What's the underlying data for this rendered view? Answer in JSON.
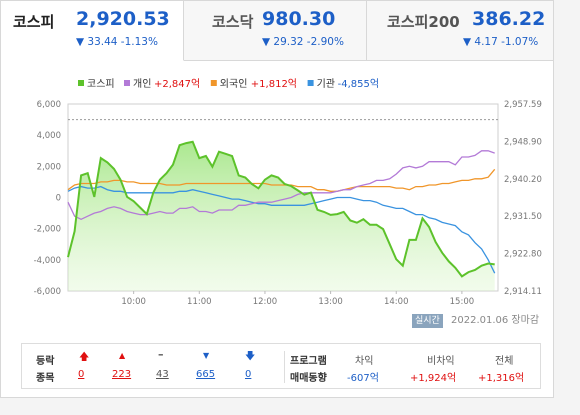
{
  "tabs": [
    {
      "name": "코스피",
      "price": "2,920.53",
      "change": "▼ 33.44  -1.13%",
      "active": true
    },
    {
      "name": "코스닥",
      "price": "980.30",
      "change": "▼ 29.32  -2.90%",
      "active": false
    },
    {
      "name": "코스피200",
      "price": "386.22",
      "change": "▼ 4.17  -1.07%",
      "active": false
    }
  ],
  "chart_data": {
    "type": "line",
    "legend": [
      {
        "name": "코스피",
        "color": "#5dc22b"
      },
      {
        "name": "개인",
        "value": "+2,847억",
        "color": "#b37ad7"
      },
      {
        "name": "외국인",
        "value": "+1,812억",
        "color": "#f0962a"
      },
      {
        "name": "기관",
        "value": "-4,855억",
        "color": "#3a93e0"
      }
    ],
    "left_axis": {
      "ticks": [
        "6,000",
        "4,000",
        "2,000",
        "0",
        "-2,000",
        "-4,000",
        "-6,000"
      ],
      "ylim": [
        -6000,
        6000
      ]
    },
    "right_axis": {
      "ticks": [
        "2,957.59",
        "2,948.90",
        "2,940.20",
        "2,931.50",
        "2,922.80",
        "2,914.11"
      ],
      "ylim": [
        2914.11,
        2957.59
      ]
    },
    "x_ticks": [
      "10:00",
      "11:00",
      "12:00",
      "13:00",
      "14:00",
      "15:00"
    ],
    "prev_close_line": 2953.97,
    "x": [
      9.0,
      9.1,
      9.2,
      9.3,
      9.4,
      9.5,
      9.6,
      9.7,
      9.8,
      9.9,
      10.0,
      10.1,
      10.2,
      10.3,
      10.4,
      10.5,
      10.6,
      10.7,
      10.8,
      10.9,
      11.0,
      11.1,
      11.2,
      11.3,
      11.4,
      11.5,
      11.6,
      11.7,
      11.8,
      11.9,
      12.0,
      12.1,
      12.2,
      12.3,
      12.4,
      12.5,
      12.6,
      12.7,
      12.8,
      12.9,
      13.0,
      13.1,
      13.2,
      13.3,
      13.4,
      13.5,
      13.6,
      13.7,
      13.8,
      13.9,
      14.0,
      14.1,
      14.2,
      14.3,
      14.4,
      14.5,
      14.6,
      14.7,
      14.8,
      14.9,
      15.0,
      15.1,
      15.2,
      15.3,
      15.4,
      15.5
    ],
    "series": [
      {
        "name": "코스피",
        "axis": "right",
        "values": [
          2922.0,
          2928.0,
          2941.0,
          2941.5,
          2936.0,
          2945.0,
          2944.0,
          2942.5,
          2940.0,
          2936.0,
          2935.0,
          2933.5,
          2932.0,
          2937.0,
          2940.0,
          2941.5,
          2943.5,
          2948.0,
          2948.5,
          2948.8,
          2945.0,
          2945.5,
          2943.0,
          2946.5,
          2946.0,
          2945.5,
          2941.0,
          2940.5,
          2939.0,
          2938.0,
          2940.0,
          2941.0,
          2940.5,
          2939.0,
          2938.5,
          2937.5,
          2936.5,
          2937.0,
          2933.0,
          2932.5,
          2931.8,
          2932.0,
          2932.5,
          2930.5,
          2930.0,
          2930.8,
          2929.5,
          2929.5,
          2928.5,
          2925.0,
          2921.5,
          2920.0,
          2926.0,
          2926.0,
          2931.0,
          2929.0,
          2925.5,
          2923.0,
          2921.0,
          2919.5,
          2917.5,
          2918.5,
          2919.0,
          2920.0,
          2920.5,
          2920.3
        ]
      },
      {
        "name": "개인",
        "axis": "left",
        "values": [
          -300,
          -1200,
          -1400,
          -1200,
          -1000,
          -900,
          -700,
          -600,
          -700,
          -900,
          -1000,
          -1100,
          -1100,
          -1000,
          -900,
          -1000,
          -1000,
          -700,
          -700,
          -600,
          -900,
          -900,
          -1000,
          -800,
          -800,
          -800,
          -500,
          -500,
          -400,
          -300,
          -300,
          -300,
          -200,
          -100,
          0,
          200,
          300,
          300,
          300,
          300,
          300,
          400,
          500,
          500,
          700,
          800,
          900,
          1100,
          1100,
          1200,
          1500,
          1900,
          2000,
          1900,
          2000,
          2300,
          2300,
          2300,
          2300,
          2100,
          2600,
          2600,
          2700,
          3000,
          3000,
          2847
        ]
      },
      {
        "name": "외국인",
        "axis": "left",
        "values": [
          500,
          800,
          900,
          900,
          900,
          1000,
          1000,
          1100,
          1100,
          1000,
          1000,
          900,
          900,
          900,
          900,
          800,
          800,
          800,
          900,
          900,
          900,
          900,
          900,
          900,
          900,
          900,
          900,
          900,
          900,
          900,
          900,
          800,
          800,
          800,
          800,
          700,
          700,
          700,
          500,
          500,
          400,
          400,
          500,
          600,
          700,
          700,
          700,
          700,
          700,
          700,
          600,
          600,
          500,
          700,
          700,
          800,
          800,
          900,
          900,
          1000,
          1100,
          1100,
          1200,
          1200,
          1300,
          1812
        ]
      },
      {
        "name": "기관",
        "axis": "left",
        "values": [
          400,
          600,
          700,
          600,
          600,
          700,
          500,
          400,
          400,
          300,
          300,
          300,
          300,
          300,
          300,
          300,
          300,
          400,
          400,
          500,
          400,
          300,
          200,
          100,
          0,
          -100,
          -100,
          -200,
          -300,
          -400,
          -400,
          -500,
          -500,
          -500,
          -500,
          -500,
          -500,
          -400,
          -300,
          -200,
          -100,
          0,
          0,
          0,
          -100,
          -200,
          -200,
          -300,
          -500,
          -600,
          -700,
          -700,
          -900,
          -1100,
          -1100,
          -1300,
          -1400,
          -1600,
          -1700,
          -1800,
          -2200,
          -2400,
          -2900,
          -3300,
          -4000,
          -4855
        ]
      }
    ]
  },
  "realtime_badge": "실시간",
  "date_text": "2022.01.06  장마감",
  "stats": {
    "label1": "등락",
    "label2": "종목",
    "items": [
      {
        "icon": "limit-up-icon",
        "value": "0"
      },
      {
        "icon": "up-icon",
        "value": "223"
      },
      {
        "icon": "flat-icon",
        "value": "43"
      },
      {
        "icon": "down-icon",
        "value": "665"
      },
      {
        "icon": "limit-down-icon",
        "value": "0"
      }
    ],
    "program_label1": "프로그램",
    "program_label2": "매매동향",
    "program": [
      {
        "label": "차익",
        "value": "-607억"
      },
      {
        "label": "비차익",
        "value": "+1,924억"
      },
      {
        "label": "전체",
        "value": "+1,316억"
      }
    ]
  }
}
